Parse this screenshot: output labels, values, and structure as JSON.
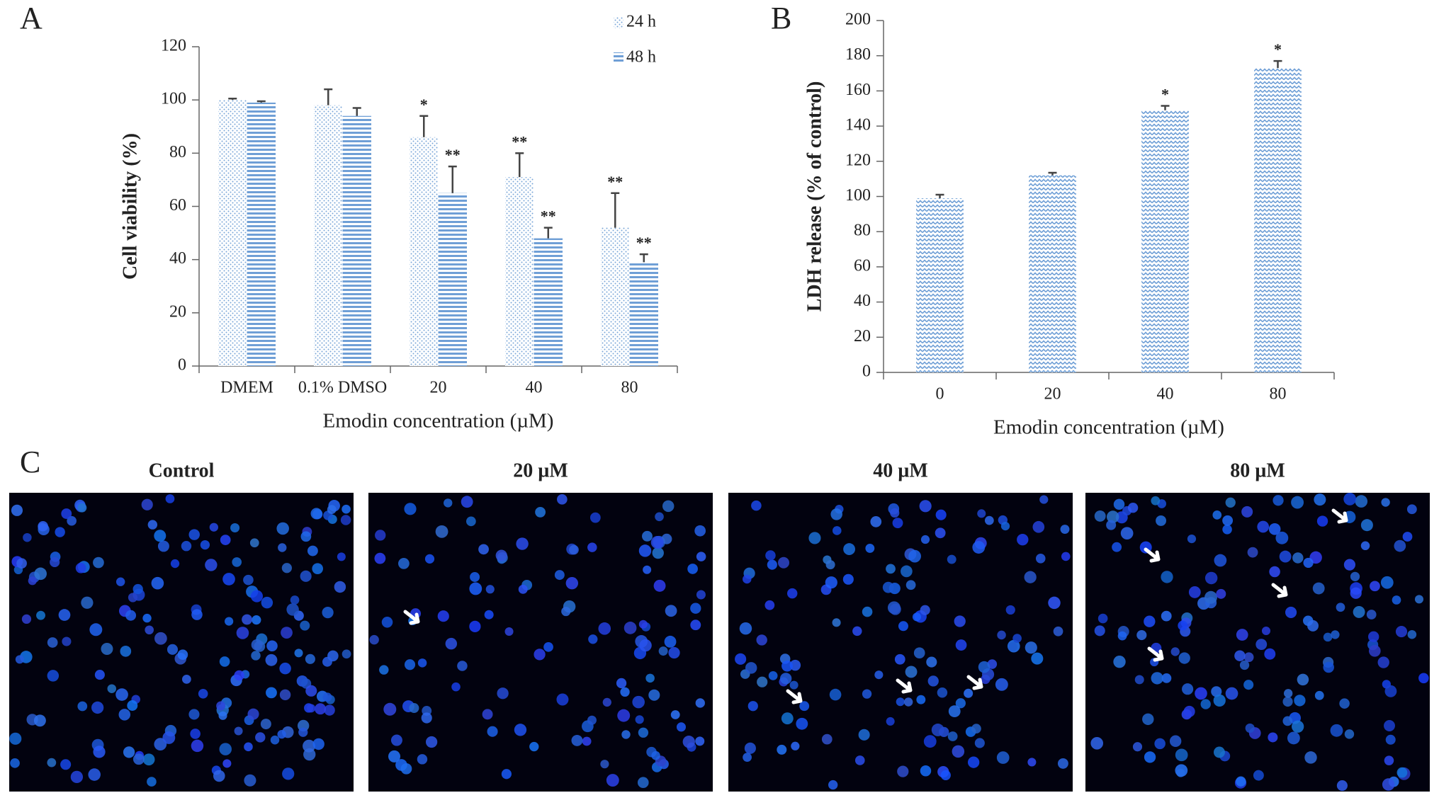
{
  "chart_data": [
    {
      "type": "bar",
      "panel_label": "A",
      "pattern_style": true,
      "xlabel": "Emodin concentration (µM)",
      "ylabel": "Cell  viability  (%)",
      "categories": [
        "DMEM",
        "0.1% DMSO",
        "20",
        "40",
        "80"
      ],
      "series": [
        {
          "name": "24 h",
          "color": "#7aa6d8",
          "pattern": "dots",
          "values": [
            100,
            98,
            86,
            71,
            52
          ],
          "errors": [
            0.5,
            6,
            8,
            9,
            13
          ],
          "annotations": [
            null,
            null,
            "*",
            "**",
            "**"
          ]
        },
        {
          "name": "48 h",
          "color": "#6f9fd6",
          "pattern": "stripes",
          "values": [
            99,
            94,
            65,
            48,
            39
          ],
          "errors": [
            0.5,
            3,
            10,
            4,
            3
          ],
          "annotations": [
            null,
            null,
            "**",
            "**",
            "**"
          ]
        }
      ],
      "ylim": [
        0,
        120
      ],
      "yticks": [
        0,
        20,
        40,
        60,
        80,
        100,
        120
      ],
      "legend": "upper right"
    },
    {
      "type": "bar",
      "panel_label": "B",
      "pattern_style": true,
      "xlabel": "Emodin concentration (µM)",
      "ylabel": "LDH release (% of control)",
      "categories": [
        "0",
        "20",
        "40",
        "80"
      ],
      "series": [
        {
          "color": "#6f9fd6",
          "pattern": "zigzag",
          "values": [
            99,
            112,
            149,
            173
          ],
          "errors": [
            2,
            1.5,
            2.5,
            4
          ],
          "annotations": [
            null,
            null,
            "*",
            "*"
          ]
        }
      ],
      "ylim": [
        0,
        200
      ],
      "yticks": [
        0,
        20,
        40,
        60,
        80,
        100,
        120,
        140,
        160,
        180,
        200
      ]
    }
  ],
  "panel_c": {
    "label": "C",
    "images": [
      {
        "title": "Control"
      },
      {
        "title": "20 µM"
      },
      {
        "title": "40 µM"
      },
      {
        "title": "80 µM"
      }
    ]
  }
}
